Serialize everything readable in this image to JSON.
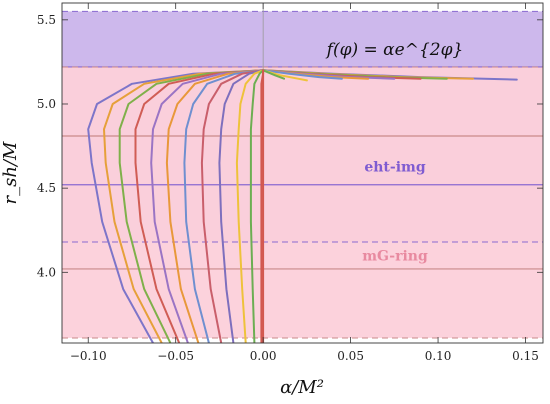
{
  "chart_data": {
    "type": "line",
    "xlabel": "α/M²",
    "ylabel": "r_sh/M",
    "xlim": [
      -0.115,
      0.16
    ],
    "ylim": [
      3.58,
      5.6
    ],
    "x_ticks": [
      -0.1,
      -0.05,
      0.0,
      0.05,
      0.1,
      0.15
    ],
    "x_tick_labels": [
      "−0.10",
      "−0.05",
      "0.00",
      "0.05",
      "0.10",
      "0.15"
    ],
    "y_ticks": [
      4.0,
      4.5,
      5.0,
      5.5
    ],
    "y_tick_labels": [
      "4.0",
      "4.5",
      "5.0",
      "5.5"
    ],
    "annotation": "f(φ) = αe^{2φ}",
    "bands": [
      {
        "name": "eht-img",
        "ymin": 4.18,
        "ymax": 5.55,
        "color": "#cdb8ec",
        "solid_edges": [
          4.52,
          5.22
        ],
        "dashed_edges": [
          4.18,
          5.55
        ],
        "label": "eht-img",
        "label_color": "#7f5cd1"
      },
      {
        "name": "mG-ring",
        "ymin": 3.61,
        "ymax": 5.22,
        "color": "#fcd0da",
        "solid_edges": [
          4.02,
          4.81
        ],
        "dashed_edges": [
          3.61,
          5.22
        ],
        "label": "mG-ring",
        "label_color": "#e88aa0"
      }
    ],
    "series": [
      {
        "color": "#7d75c9",
        "values": [
          [
            -0.063,
            3.58
          ],
          [
            -0.08,
            3.9
          ],
          [
            -0.092,
            4.3
          ],
          [
            -0.098,
            4.65
          ],
          [
            -0.1,
            4.85
          ],
          [
            -0.095,
            5.0
          ],
          [
            -0.075,
            5.12
          ],
          [
            -0.04,
            5.18
          ],
          [
            0.0,
            5.2
          ]
        ]
      },
      {
        "color": "#e6a03a",
        "values": [
          [
            -0.058,
            3.58
          ],
          [
            -0.074,
            3.9
          ],
          [
            -0.085,
            4.3
          ],
          [
            -0.09,
            4.65
          ],
          [
            -0.091,
            4.85
          ],
          [
            -0.086,
            5.0
          ],
          [
            -0.068,
            5.12
          ],
          [
            -0.036,
            5.18
          ],
          [
            0.0,
            5.2
          ]
        ]
      },
      {
        "color": "#7fb04a",
        "values": [
          [
            -0.053,
            3.58
          ],
          [
            -0.068,
            3.9
          ],
          [
            -0.078,
            4.3
          ],
          [
            -0.082,
            4.65
          ],
          [
            -0.082,
            4.85
          ],
          [
            -0.077,
            5.0
          ],
          [
            -0.061,
            5.12
          ],
          [
            -0.032,
            5.18
          ],
          [
            0.0,
            5.2
          ]
        ]
      },
      {
        "color": "#d05d55",
        "values": [
          [
            -0.048,
            3.58
          ],
          [
            -0.061,
            3.9
          ],
          [
            -0.07,
            4.3
          ],
          [
            -0.073,
            4.65
          ],
          [
            -0.073,
            4.85
          ],
          [
            -0.068,
            5.0
          ],
          [
            -0.054,
            5.12
          ],
          [
            -0.028,
            5.18
          ],
          [
            0.0,
            5.2
          ]
        ]
      },
      {
        "color": "#9a74c4",
        "values": [
          [
            -0.043,
            3.58
          ],
          [
            -0.054,
            3.9
          ],
          [
            -0.062,
            4.3
          ],
          [
            -0.064,
            4.65
          ],
          [
            -0.063,
            4.85
          ],
          [
            -0.058,
            5.0
          ],
          [
            -0.046,
            5.12
          ],
          [
            -0.024,
            5.18
          ],
          [
            0.0,
            5.2
          ]
        ]
      },
      {
        "color": "#e8983a",
        "values": [
          [
            -0.037,
            3.58
          ],
          [
            -0.047,
            3.9
          ],
          [
            -0.053,
            4.3
          ],
          [
            -0.055,
            4.65
          ],
          [
            -0.054,
            4.85
          ],
          [
            -0.049,
            5.0
          ],
          [
            -0.039,
            5.12
          ],
          [
            -0.02,
            5.18
          ],
          [
            0.0,
            5.2
          ]
        ]
      },
      {
        "color": "#6f8fd0",
        "values": [
          [
            -0.031,
            3.58
          ],
          [
            -0.039,
            3.9
          ],
          [
            -0.044,
            4.3
          ],
          [
            -0.045,
            4.65
          ],
          [
            -0.044,
            4.85
          ],
          [
            -0.04,
            5.0
          ],
          [
            -0.032,
            5.12
          ],
          [
            -0.016,
            5.18
          ],
          [
            0.0,
            5.2
          ]
        ]
      },
      {
        "color": "#c95f6b",
        "values": [
          [
            -0.024,
            3.58
          ],
          [
            -0.03,
            3.9
          ],
          [
            -0.034,
            4.3
          ],
          [
            -0.035,
            4.65
          ],
          [
            -0.034,
            4.85
          ],
          [
            -0.031,
            5.0
          ],
          [
            -0.024,
            5.12
          ],
          [
            -0.012,
            5.18
          ],
          [
            0.0,
            5.2
          ]
        ]
      },
      {
        "color": "#7e6fbd",
        "values": [
          [
            -0.017,
            3.58
          ],
          [
            -0.021,
            3.9
          ],
          [
            -0.024,
            4.3
          ],
          [
            -0.025,
            4.65
          ],
          [
            -0.024,
            4.85
          ],
          [
            -0.022,
            5.0
          ],
          [
            -0.017,
            5.12
          ],
          [
            -0.008,
            5.18
          ],
          [
            0.0,
            5.2
          ]
        ]
      },
      {
        "color": "#eec23a",
        "values": [
          [
            -0.01,
            3.58
          ],
          [
            -0.012,
            3.9
          ],
          [
            -0.014,
            4.3
          ],
          [
            -0.015,
            4.65
          ],
          [
            -0.014,
            4.85
          ],
          [
            -0.013,
            5.0
          ],
          [
            -0.01,
            5.12
          ],
          [
            -0.005,
            5.18
          ],
          [
            0.0,
            5.2
          ]
        ]
      },
      {
        "color": "#6cae52",
        "values": [
          [
            -0.005,
            3.58
          ],
          [
            -0.006,
            3.9
          ],
          [
            -0.007,
            4.3
          ],
          [
            -0.007,
            4.65
          ],
          [
            -0.007,
            4.85
          ],
          [
            -0.006,
            5.0
          ],
          [
            -0.005,
            5.12
          ],
          [
            -0.002,
            5.18
          ],
          [
            0.0,
            5.2
          ]
        ]
      },
      {
        "color": "#d2584f",
        "values": [
          [
            -0.001,
            3.58
          ],
          [
            -0.001,
            3.9
          ],
          [
            -0.001,
            4.3
          ],
          [
            -0.001,
            4.65
          ],
          [
            -0.001,
            4.85
          ],
          [
            -0.001,
            5.0
          ],
          [
            -0.001,
            5.12
          ],
          [
            0.0,
            5.18
          ],
          [
            0.0,
            5.2
          ]
        ]
      },
      {
        "color": "#7d75c9",
        "values": [
          [
            0.0,
            5.2
          ],
          [
            0.04,
            5.18
          ],
          [
            0.09,
            5.16
          ],
          [
            0.145,
            5.145
          ]
        ]
      },
      {
        "color": "#e6a03a",
        "values": [
          [
            0.0,
            5.2
          ],
          [
            0.035,
            5.18
          ],
          [
            0.08,
            5.16
          ],
          [
            0.12,
            5.15
          ]
        ]
      },
      {
        "color": "#7fb04a",
        "values": [
          [
            0.0,
            5.2
          ],
          [
            0.03,
            5.18
          ],
          [
            0.07,
            5.16
          ],
          [
            0.105,
            5.15
          ]
        ]
      },
      {
        "color": "#d05d55",
        "values": [
          [
            0.0,
            5.2
          ],
          [
            0.025,
            5.18
          ],
          [
            0.06,
            5.16
          ],
          [
            0.09,
            5.15
          ]
        ]
      },
      {
        "color": "#9a74c4",
        "values": [
          [
            0.0,
            5.2
          ],
          [
            0.022,
            5.18
          ],
          [
            0.05,
            5.16
          ],
          [
            0.075,
            5.15
          ]
        ]
      },
      {
        "color": "#e8983a",
        "values": [
          [
            0.0,
            5.2
          ],
          [
            0.018,
            5.18
          ],
          [
            0.04,
            5.16
          ],
          [
            0.06,
            5.15
          ]
        ]
      },
      {
        "color": "#6f8fd0",
        "values": [
          [
            0.0,
            5.2
          ],
          [
            0.015,
            5.18
          ],
          [
            0.032,
            5.16
          ],
          [
            0.045,
            5.15
          ]
        ]
      },
      {
        "color": "#eec23a",
        "values": [
          [
            0.0,
            5.2
          ],
          [
            0.01,
            5.17
          ],
          [
            0.02,
            5.15
          ],
          [
            0.025,
            5.14
          ]
        ]
      },
      {
        "color": "#6cae52",
        "values": [
          [
            0.0,
            5.2
          ],
          [
            0.007,
            5.17
          ],
          [
            0.012,
            5.15
          ]
        ]
      },
      {
        "color": "#d2584f",
        "values": [
          [
            0.0,
            5.2
          ],
          [
            0.0,
            3.58
          ]
        ]
      }
    ]
  }
}
